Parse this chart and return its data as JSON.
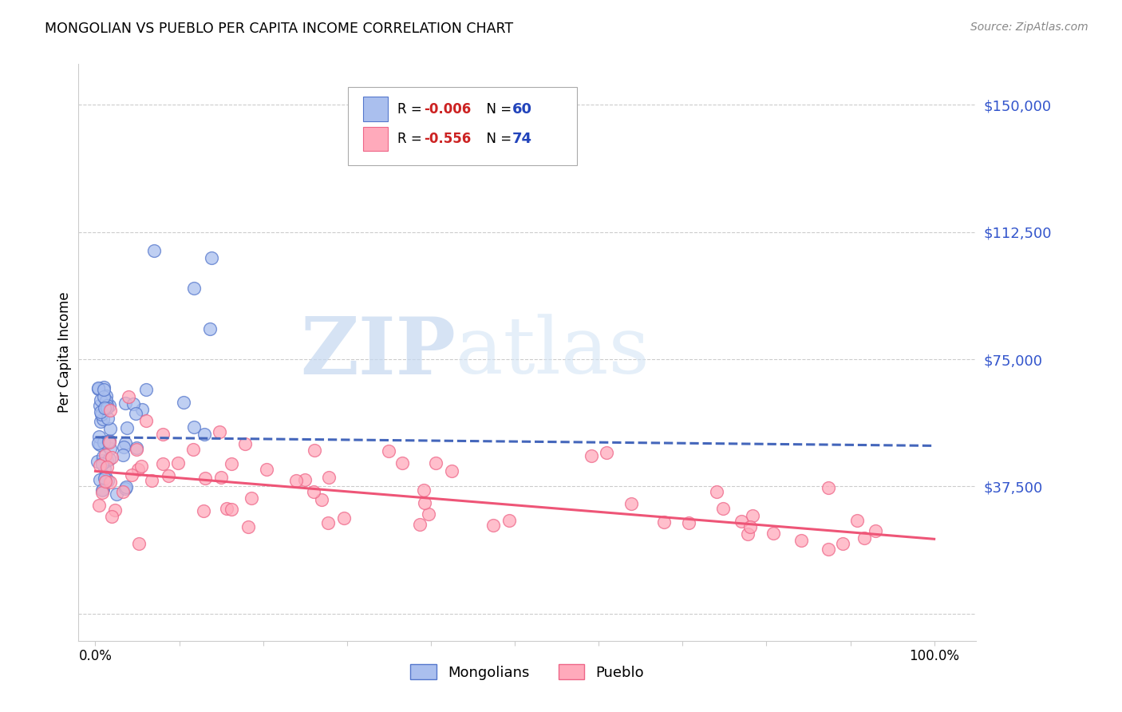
{
  "title": "MONGOLIAN VS PUEBLO PER CAPITA INCOME CORRELATION CHART",
  "source": "Source: ZipAtlas.com",
  "ylabel": "Per Capita Income",
  "watermark_zip": "ZIP",
  "watermark_atlas": "atlas",
  "y_ticks": [
    0,
    37500,
    75000,
    112500,
    150000
  ],
  "y_tick_labels": [
    "",
    "$37,500",
    "$75,000",
    "$112,500",
    "$150,000"
  ],
  "xlim": [
    -0.02,
    1.05
  ],
  "ylim": [
    -8000,
    162000
  ],
  "mongolian_color": "#aabfee",
  "pueblo_color": "#ffaabb",
  "mongolian_edge_color": "#5577cc",
  "pueblo_edge_color": "#ee6688",
  "mongolian_line_color": "#4466bb",
  "pueblo_line_color": "#ee5577",
  "grid_color": "#cccccc",
  "background_color": "#ffffff",
  "r1_color": "#cc2222",
  "n1_color": "#2244bb",
  "r2_color": "#cc2222",
  "n2_color": "#2244bb",
  "tick_label_color": "#3355cc",
  "source_color": "#888888",
  "mon_line_x0": 0.0,
  "mon_line_x1": 1.0,
  "mon_line_y0": 52000,
  "mon_line_y1": 49500,
  "pue_line_x0": 0.0,
  "pue_line_x1": 1.0,
  "pue_line_y0": 42000,
  "pue_line_y1": 22000
}
